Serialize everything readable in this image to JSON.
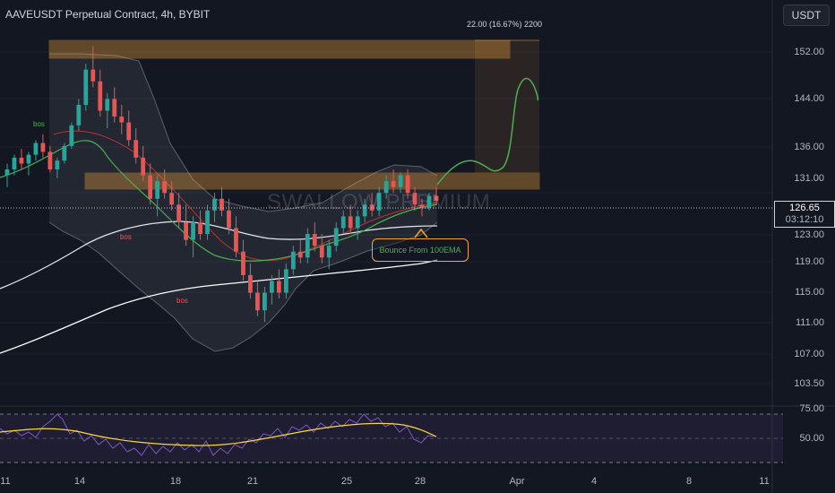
{
  "header": {
    "title": "AAVEUSDT Perpetual Contract, 4h, BYBIT",
    "currency": "USDT"
  },
  "watermark": "SWALLOW PREMIUM",
  "measure_label": "22.00 (16.67%) 2200",
  "annotation": "Bounce From 100EMA",
  "bos_labels": [
    "bos",
    "bos",
    "bos"
  ],
  "price_tag": {
    "price": "126.65",
    "countdown": "03:12:10"
  },
  "y_ticks": [
    "152.00",
    "144.00",
    "136.00",
    "131.00",
    "123.00",
    "119.00",
    "115.00",
    "111.00",
    "107.00",
    "103.50"
  ],
  "rsi_ticks": [
    "75.00",
    "50.00"
  ],
  "x_ticks": [
    "11",
    "14",
    "18",
    "21",
    "25",
    "28",
    "Apr",
    "4",
    "8",
    "11"
  ],
  "colors": {
    "background": "#131722",
    "up": "#26a69a",
    "down": "#ef5350",
    "zone": "#f2a33a",
    "ema100": "#ffffff",
    "ema_green": "#4caf50",
    "bb_mid": "#e53935",
    "rsi": "#7e57c2",
    "rsi_ma": "#fdd835",
    "projection": "#4caf50"
  },
  "chart_data": {
    "type": "candlestick",
    "timeframe": "4h",
    "symbol": "AAVEUSDT Perpetual Contract",
    "exchange": "BYBIT",
    "x_axis": [
      "11",
      "14",
      "18",
      "21",
      "25",
      "28",
      "Apr",
      "4",
      "8",
      "11"
    ],
    "y_axis_ticks": [
      152.0,
      144.0,
      136.0,
      131.0,
      123.0,
      119.0,
      115.0,
      111.0,
      107.0,
      103.5
    ],
    "current_price": 126.65,
    "ohlc_estimated": [
      [
        131.0,
        133.0,
        129.0,
        132.0
      ],
      [
        132.0,
        134.5,
        131.0,
        134.0
      ],
      [
        134.0,
        135.5,
        132.0,
        133.0
      ],
      [
        133.0,
        135.0,
        131.0,
        134.5
      ],
      [
        134.5,
        137.0,
        133.5,
        136.5
      ],
      [
        136.5,
        138.0,
        134.0,
        135.0
      ],
      [
        135.0,
        136.0,
        131.5,
        132.0
      ],
      [
        132.0,
        134.0,
        130.5,
        133.5
      ],
      [
        133.5,
        136.5,
        133.0,
        136.0
      ],
      [
        136.0,
        140.0,
        135.5,
        139.5
      ],
      [
        139.5,
        144.0,
        138.5,
        143.0
      ],
      [
        143.0,
        150.0,
        142.0,
        149.0
      ],
      [
        149.0,
        153.0,
        146.0,
        147.0
      ],
      [
        147.0,
        149.0,
        141.0,
        142.0
      ],
      [
        142.0,
        145.0,
        139.0,
        144.0
      ],
      [
        144.0,
        146.0,
        140.0,
        141.0
      ],
      [
        141.0,
        143.0,
        138.0,
        140.0
      ],
      [
        140.0,
        142.0,
        136.0,
        137.0
      ],
      [
        137.0,
        139.0,
        133.0,
        134.0
      ],
      [
        134.0,
        136.0,
        130.0,
        131.0
      ],
      [
        131.0,
        133.0,
        126.0,
        127.0
      ],
      [
        127.0,
        131.0,
        124.0,
        130.0
      ],
      [
        130.0,
        132.0,
        127.0,
        128.0
      ],
      [
        128.0,
        130.0,
        125.0,
        126.0
      ],
      [
        126.0,
        128.0,
        122.0,
        123.0
      ],
      [
        123.0,
        126.0,
        119.0,
        120.0
      ],
      [
        120.0,
        124.0,
        117.0,
        123.0
      ],
      [
        123.0,
        125.0,
        120.0,
        121.0
      ],
      [
        121.0,
        126.0,
        120.0,
        125.0
      ],
      [
        125.0,
        128.0,
        123.0,
        127.0
      ],
      [
        127.0,
        129.0,
        124.0,
        125.0
      ],
      [
        125.0,
        127.0,
        121.0,
        122.0
      ],
      [
        122.0,
        124.0,
        117.0,
        118.0
      ],
      [
        118.0,
        120.0,
        113.0,
        114.0
      ],
      [
        114.0,
        116.0,
        110.0,
        111.0
      ],
      [
        111.0,
        113.0,
        107.0,
        108.0
      ],
      [
        108.0,
        112.0,
        106.0,
        111.0
      ],
      [
        111.0,
        114.0,
        109.0,
        113.0
      ],
      [
        113.0,
        115.0,
        110.0,
        111.0
      ],
      [
        111.0,
        116.0,
        110.0,
        115.0
      ],
      [
        115.0,
        119.0,
        114.0,
        118.0
      ],
      [
        118.0,
        120.0,
        116.0,
        117.0
      ],
      [
        117.0,
        122.0,
        116.0,
        121.0
      ],
      [
        121.0,
        123.0,
        118.0,
        119.0
      ],
      [
        119.0,
        121.0,
        116.0,
        117.0
      ],
      [
        117.0,
        120.0,
        115.0,
        119.0
      ],
      [
        119.0,
        123.0,
        118.0,
        122.0
      ],
      [
        122.0,
        125.0,
        121.0,
        124.0
      ],
      [
        124.0,
        126.0,
        121.0,
        122.0
      ],
      [
        122.0,
        125.0,
        120.0,
        124.0
      ],
      [
        124.0,
        127.0,
        123.0,
        126.0
      ],
      [
        126.0,
        128.0,
        124.0,
        125.0
      ],
      [
        125.0,
        129.0,
        124.0,
        128.0
      ],
      [
        128.0,
        131.0,
        127.0,
        130.0
      ],
      [
        130.0,
        132.0,
        128.0,
        129.0
      ],
      [
        129.0,
        131.5,
        128.0,
        131.0
      ],
      [
        131.0,
        132.0,
        127.0,
        128.0
      ],
      [
        128.0,
        129.0,
        125.0,
        126.0
      ],
      [
        126.0,
        127.0,
        124.0,
        125.5
      ],
      [
        125.5,
        128.0,
        125.0,
        127.5
      ],
      [
        127.5,
        129.0,
        126.0,
        126.65
      ]
    ],
    "zones": [
      {
        "label": "resistance",
        "low": 151.0,
        "high": 155.0
      },
      {
        "label": "support/resistance",
        "low": 129.5,
        "high": 132.5
      }
    ],
    "indicators": [
      "Bollinger Bands",
      "EMA",
      "100 EMA",
      "RSI"
    ],
    "rsi": {
      "levels": [
        75.0,
        50.0
      ]
    },
    "projection_target": 146.0,
    "annotations": [
      "bos",
      "bos",
      "bos",
      "Bounce From 100EMA"
    ]
  }
}
